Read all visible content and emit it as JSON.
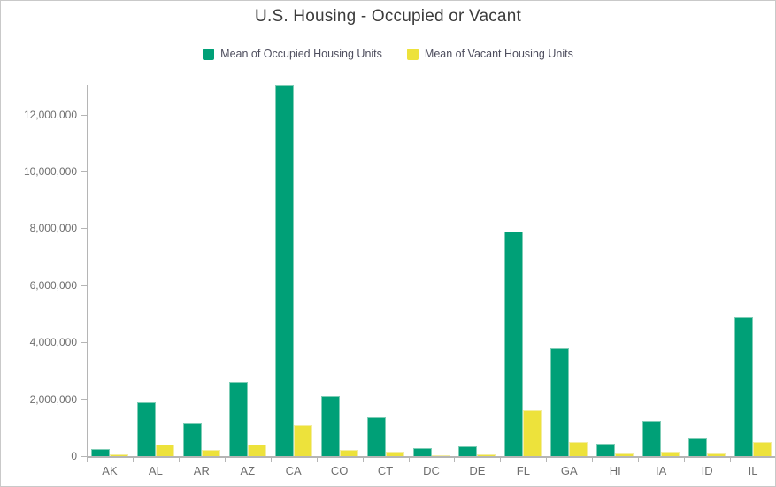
{
  "chart_data": {
    "type": "bar",
    "title": "U.S. Housing - Occupied or Vacant",
    "xlabel": "",
    "ylabel": "",
    "categories": [
      "AK",
      "AL",
      "AR",
      "AZ",
      "CA",
      "CO",
      "CT",
      "DC",
      "DE",
      "FL",
      "GA",
      "HI",
      "IA",
      "ID",
      "IL"
    ],
    "series": [
      {
        "name": "Mean of Occupied Housing Units",
        "color": "#00a077",
        "values": [
          250000,
          1880000,
          1160000,
          2600000,
          13050000,
          2110000,
          1380000,
          270000,
          340000,
          7900000,
          3800000,
          440000,
          1250000,
          620000,
          4880000
        ]
      },
      {
        "name": "Mean of Vacant Housing Units",
        "color": "#ede23b",
        "values": [
          60000,
          390000,
          220000,
          390000,
          1100000,
          220000,
          160000,
          30000,
          60000,
          1630000,
          490000,
          100000,
          170000,
          90000,
          490000
        ]
      }
    ],
    "ylim": [
      0,
      13200000
    ],
    "yticks": [
      0,
      2000000,
      4000000,
      6000000,
      8000000,
      10000000,
      12000000
    ],
    "ytick_labels": [
      "0",
      "2,000,000",
      "4,000,000",
      "6,000,000",
      "8,000,000",
      "10,000,000",
      "12,000,000"
    ],
    "grid": false,
    "legend_position": "top"
  },
  "colors": {
    "occupied": "#00a077",
    "vacant": "#ede23b",
    "axis": "#b5b5b5",
    "axis_text": "#6e6e6e",
    "title_text": "#3b3b3b",
    "border": "#c9c9c9"
  }
}
